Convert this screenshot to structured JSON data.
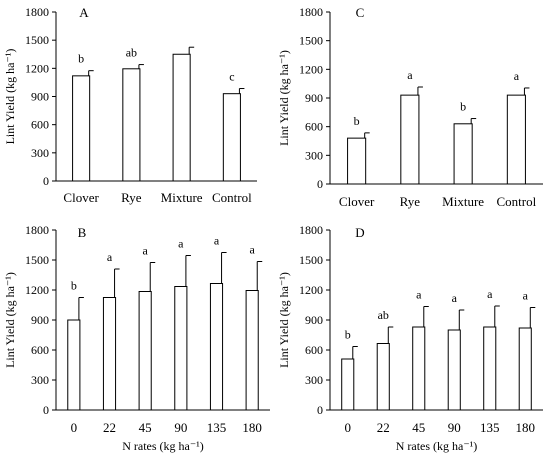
{
  "chart_data": [
    {
      "panel_label": "A",
      "type": "bar",
      "categories": [
        "Clover",
        "Rye",
        "Mixture",
        "Control"
      ],
      "values": [
        1120,
        1195,
        1350,
        930
      ],
      "error": [
        55,
        45,
        75,
        55
      ],
      "letters": [
        "b",
        "ab",
        "",
        "c"
      ],
      "ylabel": "Lint Yield (kg ha⁻¹)",
      "xlabel": "",
      "ylim": [
        0,
        1800
      ],
      "yticks": [
        "0",
        "300",
        "600",
        "900",
        "1200",
        "1500",
        "1800"
      ],
      "grid": false
    },
    {
      "panel_label": "C",
      "type": "bar",
      "categories": [
        "Clover",
        "Rye",
        "Mixture",
        "Control"
      ],
      "values": [
        480,
        930,
        630,
        930
      ],
      "error": [
        55,
        85,
        55,
        75
      ],
      "letters": [
        "b",
        "a",
        "b",
        "a"
      ],
      "ylabel": "Lint Yield (kg ha⁻¹)",
      "xlabel": "",
      "ylim": [
        0,
        1800
      ],
      "yticks": [
        "0",
        "300",
        "600",
        "900",
        "1200",
        "1500",
        "1800"
      ],
      "grid": false
    },
    {
      "panel_label": "B",
      "type": "bar",
      "categories": [
        "0",
        "22",
        "45",
        "90",
        "135",
        "180"
      ],
      "values": [
        900,
        1125,
        1185,
        1235,
        1265,
        1195
      ],
      "error": [
        225,
        285,
        290,
        310,
        310,
        290
      ],
      "letters": [
        "b",
        "a",
        "a",
        "a",
        "a",
        "a"
      ],
      "ylabel": "Lint Yield (kg ha⁻¹)",
      "xlabel": "N rates (kg ha⁻¹)",
      "ylim": [
        0,
        1800
      ],
      "yticks": [
        "0",
        "300",
        "600",
        "900",
        "1200",
        "1500",
        "1800"
      ],
      "grid": false
    },
    {
      "panel_label": "D",
      "type": "bar",
      "categories": [
        "0",
        "22",
        "45",
        "90",
        "135",
        "180"
      ],
      "values": [
        510,
        665,
        830,
        800,
        830,
        820
      ],
      "error": [
        125,
        165,
        205,
        200,
        210,
        205
      ],
      "letters": [
        "b",
        "ab",
        "a",
        "a",
        "a",
        "a"
      ],
      "ylabel": "Lint Yield (kg ha⁻¹)",
      "xlabel": "N rates (kg ha⁻¹)",
      "ylim": [
        0,
        1800
      ],
      "yticks": [
        "0",
        "300",
        "600",
        "900",
        "1200",
        "1500",
        "1800"
      ],
      "grid": false
    }
  ]
}
